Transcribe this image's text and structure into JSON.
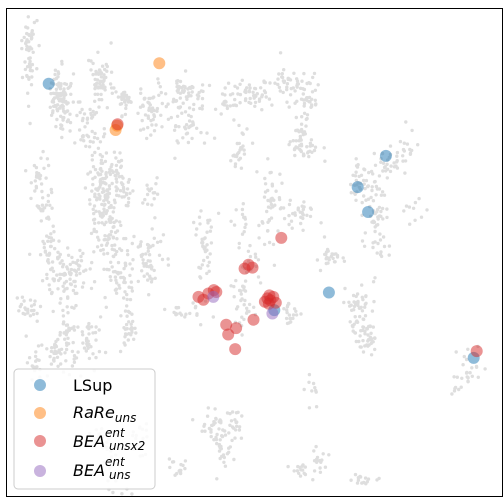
{
  "chart_data": {
    "type": "scatter",
    "title": "",
    "xlabel": "",
    "ylabel": "",
    "axes_ticks": "none",
    "grid": false,
    "xlim": [
      0,
      100
    ],
    "ylim": [
      0,
      100
    ],
    "legend_position": "lower-left",
    "background_points_color": "#dedede",
    "series": [
      {
        "name": "LSup",
        "color": "#1f77b4",
        "points": [
          [
            8.5,
            84.6
          ],
          [
            76.5,
            69.8
          ],
          [
            70.8,
            63.4
          ],
          [
            72.9,
            58.3
          ],
          [
            65.0,
            41.8
          ],
          [
            54.0,
            38.2
          ],
          [
            94.2,
            28.4
          ]
        ]
      },
      {
        "name": "RaRe",
        "name_sub": "uns",
        "color": "#ff7f0e",
        "points": [
          [
            30.8,
            88.8
          ],
          [
            22.0,
            75.1
          ],
          [
            22.3,
            76.0
          ]
        ]
      },
      {
        "name": "BEA",
        "name_sup": "ent",
        "name_sub": "unsx2",
        "color": "#d62728",
        "points": [
          [
            22.4,
            76.3
          ],
          [
            55.4,
            53.0
          ],
          [
            48.8,
            47.5
          ],
          [
            48.0,
            46.7
          ],
          [
            49.6,
            46.9
          ],
          [
            38.7,
            40.9
          ],
          [
            39.7,
            40.3
          ],
          [
            40.7,
            41.6
          ],
          [
            41.8,
            42.3
          ],
          [
            42.3,
            41.9
          ],
          [
            52.6,
            40.6
          ],
          [
            53.2,
            40.2
          ],
          [
            53.8,
            40.9
          ],
          [
            52.9,
            39.5
          ],
          [
            54.3,
            39.7
          ],
          [
            52.1,
            39.9
          ],
          [
            53.0,
            41.2
          ],
          [
            49.8,
            36.2
          ],
          [
            44.3,
            35.2
          ],
          [
            46.3,
            34.5
          ],
          [
            44.7,
            33.2
          ],
          [
            46.1,
            30.2
          ],
          [
            94.8,
            29.8
          ]
        ]
      },
      {
        "name": "BEA",
        "name_sup": "ent",
        "name_sub": "uns",
        "color": "#9467bd",
        "points": [
          [
            41.7,
            40.9
          ],
          [
            53.6,
            37.5
          ]
        ]
      }
    ]
  }
}
